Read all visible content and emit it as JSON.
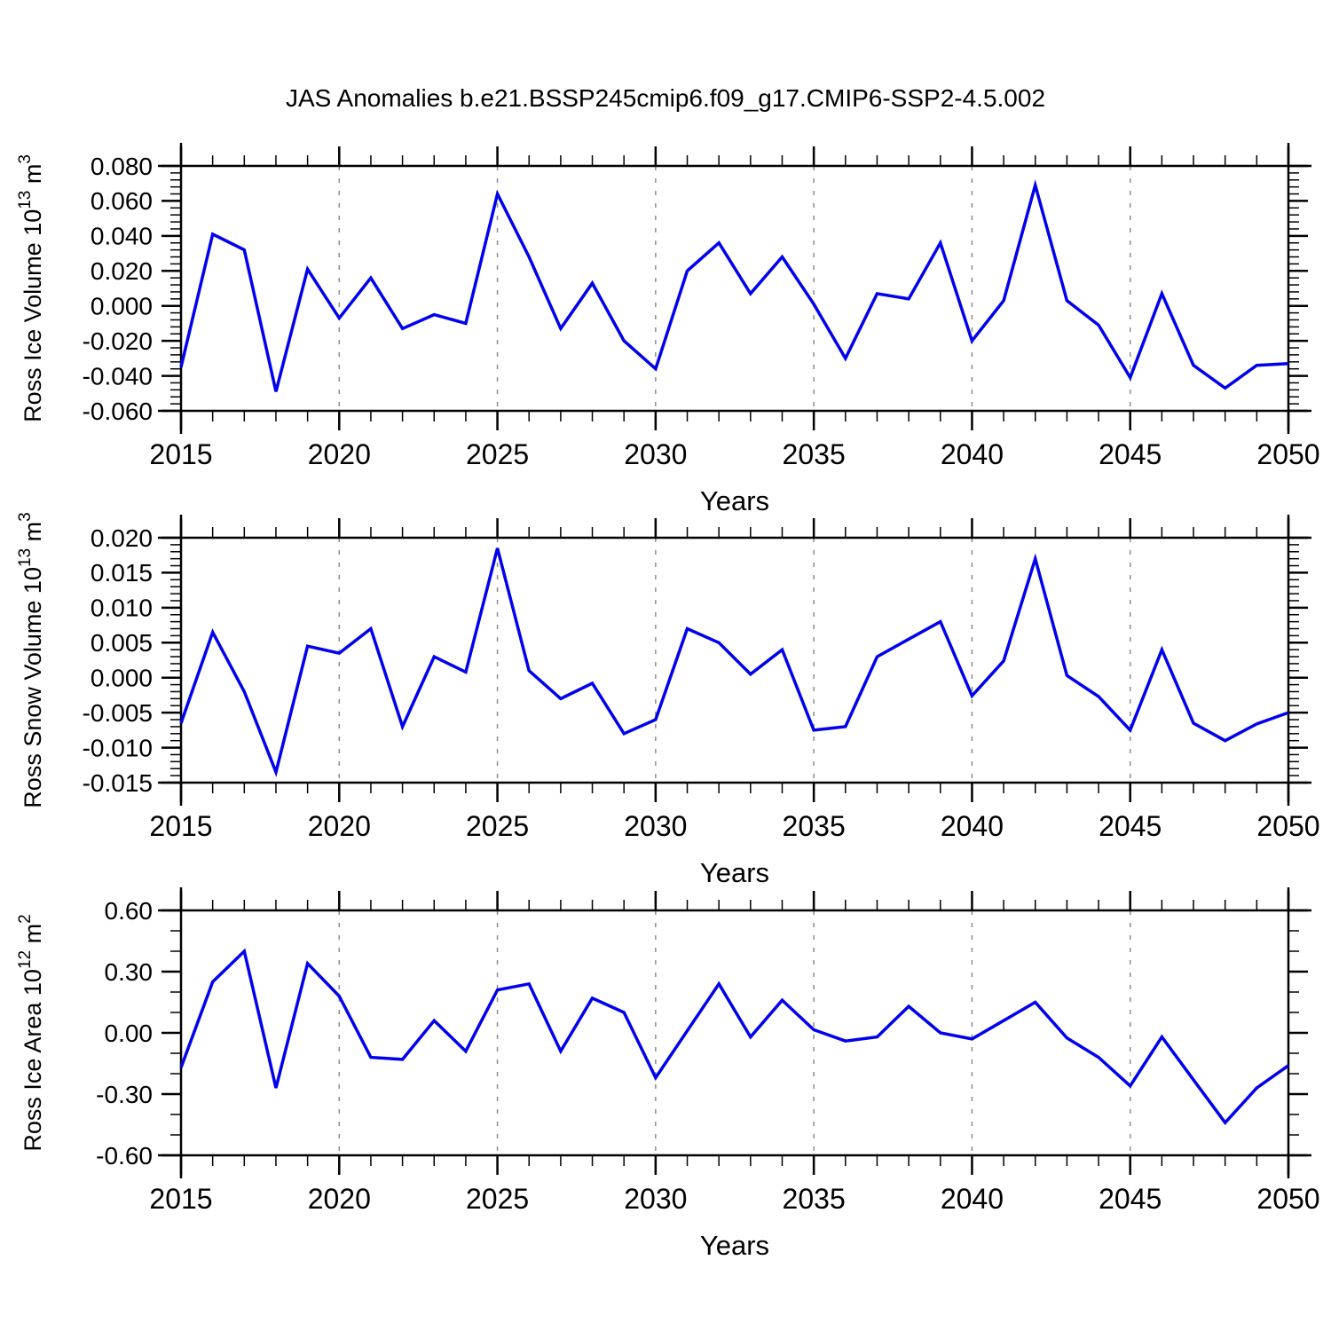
{
  "figure": {
    "title": "JAS Anomalies b.e21.BSSP245cmip6.f09_g17.CMIP6-SSP2-4.5.002",
    "background_color": "#ffffff",
    "text_color": "#000000"
  },
  "chart_data": [
    {
      "id": "ross-ice-volume",
      "type": "line",
      "title": "",
      "xlabel": "Years",
      "ylabel": "Ross Ice Volume 10^13 m^3",
      "ylabel_rich": [
        {
          "t": "Ross Ice Volume 10"
        },
        {
          "t": "13",
          "sup": true
        },
        {
          "t": " m"
        },
        {
          "t": "3",
          "sup": true
        }
      ],
      "x": [
        2015,
        2016,
        2017,
        2018,
        2019,
        2020,
        2021,
        2022,
        2023,
        2024,
        2025,
        2026,
        2027,
        2028,
        2029,
        2030,
        2031,
        2032,
        2033,
        2034,
        2035,
        2036,
        2037,
        2038,
        2039,
        2040,
        2041,
        2042,
        2043,
        2044,
        2045,
        2046,
        2047,
        2048,
        2049,
        2050
      ],
      "values": [
        -0.035,
        0.041,
        0.032,
        -0.049,
        0.021,
        -0.007,
        0.016,
        -0.013,
        -0.005,
        -0.01,
        0.064,
        0.028,
        -0.013,
        0.013,
        -0.02,
        -0.036,
        0.02,
        0.036,
        0.007,
        0.028,
        0.001,
        -0.03,
        0.007,
        0.004,
        0.036,
        -0.02,
        0.003,
        0.069,
        0.003,
        -0.011,
        -0.041,
        0.007,
        -0.034,
        -0.047,
        -0.034,
        -0.033
      ],
      "ylim": [
        -0.06,
        0.08
      ],
      "ytick_step": 0.02,
      "yminor_step": 0.004,
      "ytick_decimals": 3,
      "xlim": [
        2015,
        2050
      ],
      "xtick_step": 5,
      "xminor_step": 1,
      "gridline_years": [
        2020,
        2025,
        2030,
        2035,
        2040,
        2045
      ],
      "grid_on": true,
      "legend": "none",
      "line_color": "#0000ee",
      "grid_color": "#8c8c8c"
    },
    {
      "id": "ross-snow-volume",
      "type": "line",
      "title": "",
      "xlabel": "Years",
      "ylabel": "Ross Snow Volume 10^13 m^3",
      "ylabel_rich": [
        {
          "t": "Ross Snow Volume 10"
        },
        {
          "t": "13",
          "sup": true
        },
        {
          "t": " m"
        },
        {
          "t": "3",
          "sup": true
        }
      ],
      "x": [
        2015,
        2016,
        2017,
        2018,
        2019,
        2020,
        2021,
        2022,
        2023,
        2024,
        2025,
        2026,
        2027,
        2028,
        2029,
        2030,
        2031,
        2032,
        2033,
        2034,
        2035,
        2036,
        2037,
        2038,
        2039,
        2040,
        2041,
        2042,
        2043,
        2044,
        2045,
        2046,
        2047,
        2048,
        2049,
        2050
      ],
      "values": [
        -0.0065,
        0.0065,
        -0.002,
        -0.0135,
        0.0045,
        0.0035,
        0.007,
        -0.007,
        0.003,
        0.0008,
        0.0185,
        0.001,
        -0.003,
        -0.0008,
        -0.008,
        -0.006,
        0.007,
        0.005,
        0.0005,
        0.004,
        -0.0075,
        -0.007,
        0.003,
        0.0055,
        0.008,
        -0.0026,
        0.0024,
        0.017,
        0.0003,
        -0.0027,
        -0.0075,
        0.004,
        -0.0065,
        -0.009,
        -0.0066,
        -0.005
      ],
      "ylim": [
        -0.015,
        0.02
      ],
      "ytick_step": 0.005,
      "yminor_step": 0.001,
      "ytick_decimals": 3,
      "xlim": [
        2015,
        2050
      ],
      "xtick_step": 5,
      "xminor_step": 1,
      "gridline_years": [
        2020,
        2025,
        2030,
        2035,
        2040,
        2045
      ],
      "grid_on": true,
      "legend": "none",
      "line_color": "#0000ee",
      "grid_color": "#8c8c8c"
    },
    {
      "id": "ross-ice-area",
      "type": "line",
      "title": "",
      "xlabel": "Years",
      "ylabel": "Ross Ice Area 10^12 m^2",
      "ylabel_rich": [
        {
          "t": "Ross Ice Area 10"
        },
        {
          "t": "12",
          "sup": true
        },
        {
          "t": " m"
        },
        {
          "t": "2",
          "sup": true
        }
      ],
      "x": [
        2015,
        2016,
        2017,
        2018,
        2019,
        2020,
        2021,
        2022,
        2023,
        2024,
        2025,
        2026,
        2027,
        2028,
        2029,
        2030,
        2031,
        2032,
        2033,
        2034,
        2035,
        2036,
        2037,
        2038,
        2039,
        2040,
        2041,
        2042,
        2043,
        2044,
        2045,
        2046,
        2047,
        2048,
        2049,
        2050
      ],
      "values": [
        -0.17,
        0.25,
        0.4,
        -0.27,
        0.34,
        0.18,
        -0.12,
        -0.13,
        0.06,
        -0.09,
        0.21,
        0.24,
        -0.09,
        0.17,
        0.1,
        -0.22,
        0.01,
        0.24,
        -0.02,
        0.16,
        0.015,
        -0.04,
        -0.02,
        0.13,
        0.0,
        -0.03,
        0.06,
        0.15,
        -0.025,
        -0.12,
        -0.26,
        -0.02,
        -0.23,
        -0.44,
        -0.27,
        -0.16
      ],
      "ylim": [
        -0.6,
        0.6
      ],
      "ytick_step": 0.3,
      "yminor_step": 0.1,
      "ytick_decimals": 2,
      "xlim": [
        2015,
        2050
      ],
      "xtick_step": 5,
      "xminor_step": 1,
      "gridline_years": [
        2020,
        2025,
        2030,
        2035,
        2040,
        2045
      ],
      "grid_on": true,
      "legend": "none",
      "line_color": "#0000ee",
      "grid_color": "#8c8c8c"
    }
  ]
}
